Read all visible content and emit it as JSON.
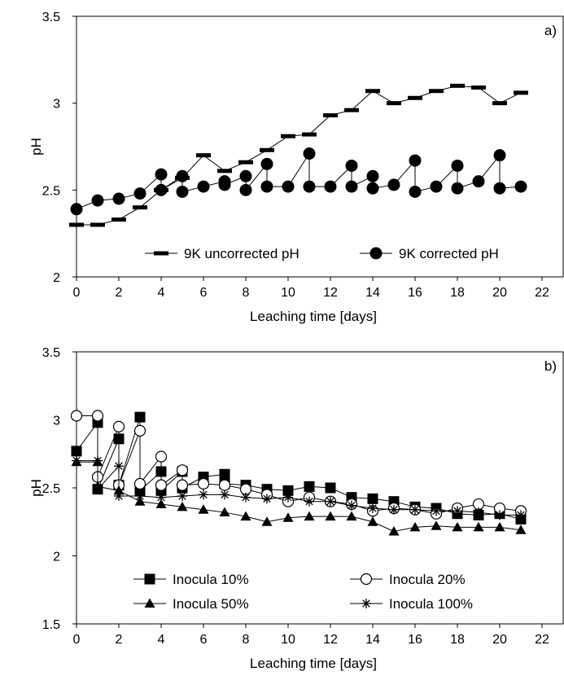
{
  "chart_data": [
    {
      "panel": "a)",
      "type": "line",
      "xlabel": "Leaching time [days]",
      "ylabel": "pH",
      "xlim": [
        0,
        23
      ],
      "ylim": [
        2,
        3.5
      ],
      "xticks": [
        0,
        2,
        4,
        6,
        8,
        10,
        12,
        14,
        16,
        18,
        20,
        22
      ],
      "yticks": [
        2,
        2.5,
        3,
        3.5
      ],
      "ytick_labels": [
        "2",
        "2.5",
        "3",
        "3.5"
      ],
      "grid": false,
      "legend": "bottom",
      "series": [
        {
          "name": "9K uncorrected pH",
          "marker": "dash",
          "color": "#000000",
          "points": [
            [
              0,
              2.3
            ],
            [
              1,
              2.3
            ],
            [
              2,
              2.33
            ],
            [
              3,
              2.4
            ],
            [
              4,
              2.5
            ],
            [
              5,
              2.57
            ],
            [
              6,
              2.7
            ],
            [
              7,
              2.61
            ],
            [
              8,
              2.66
            ],
            [
              9,
              2.73
            ],
            [
              10,
              2.81
            ],
            [
              11,
              2.82
            ],
            [
              12,
              2.93
            ],
            [
              13,
              2.96
            ],
            [
              14,
              3.07
            ],
            [
              15,
              3.0
            ],
            [
              16,
              3.03
            ],
            [
              17,
              3.07
            ],
            [
              18,
              3.1
            ],
            [
              19,
              3.09
            ],
            [
              20,
              3.0
            ],
            [
              21,
              3.06
            ]
          ]
        },
        {
          "name": "9K corrected pH",
          "marker": "filled-circle",
          "color": "#000000",
          "points": [
            [
              0,
              2.39
            ],
            [
              1,
              2.44
            ],
            [
              2,
              2.45
            ],
            [
              3,
              2.48
            ],
            [
              4,
              2.59
            ],
            [
              4,
              2.5
            ],
            [
              5,
              2.58
            ],
            [
              5,
              2.49
            ],
            [
              6,
              2.52
            ],
            [
              7,
              2.55
            ],
            [
              7,
              2.53
            ],
            [
              8,
              2.58
            ],
            [
              8,
              2.5
            ],
            [
              9,
              2.65
            ],
            [
              9,
              2.52
            ],
            [
              10,
              2.52
            ],
            [
              11,
              2.71
            ],
            [
              11,
              2.52
            ],
            [
              12,
              2.52
            ],
            [
              13,
              2.64
            ],
            [
              13,
              2.52
            ],
            [
              14,
              2.58
            ],
            [
              14,
              2.51
            ],
            [
              15,
              2.53
            ],
            [
              16,
              2.67
            ],
            [
              16,
              2.49
            ],
            [
              17,
              2.52
            ],
            [
              18,
              2.64
            ],
            [
              18,
              2.51
            ],
            [
              19,
              2.55
            ],
            [
              20,
              2.7
            ],
            [
              20,
              2.51
            ],
            [
              21,
              2.52
            ]
          ]
        }
      ]
    },
    {
      "panel": "b)",
      "type": "line",
      "xlabel": "Leaching time [days]",
      "ylabel": "pH",
      "xlim": [
        0,
        23
      ],
      "ylim": [
        1.5,
        3.5
      ],
      "xticks": [
        0,
        2,
        4,
        6,
        8,
        10,
        12,
        14,
        16,
        18,
        20,
        22
      ],
      "yticks": [
        1.5,
        2,
        2.5,
        3,
        3.5
      ],
      "ytick_labels": [
        "1.5",
        "2",
        "2.5",
        "3",
        "3.5"
      ],
      "grid": false,
      "legend": "bottom",
      "series": [
        {
          "name": "Inocula 10%",
          "marker": "filled-square",
          "color": "#000000",
          "points": [
            [
              0,
              2.77
            ],
            [
              1,
              2.98
            ],
            [
              1,
              2.49
            ],
            [
              2,
              2.86
            ],
            [
              2,
              2.52
            ],
            [
              3,
              3.02
            ],
            [
              3,
              2.48
            ],
            [
              4,
              2.62
            ],
            [
              4,
              2.48
            ],
            [
              5,
              2.62
            ],
            [
              5,
              2.5
            ],
            [
              6,
              2.58
            ],
            [
              7,
              2.6
            ],
            [
              7,
              2.53
            ],
            [
              8,
              2.52
            ],
            [
              9,
              2.49
            ],
            [
              10,
              2.48
            ],
            [
              11,
              2.51
            ],
            [
              12,
              2.5
            ],
            [
              13,
              2.43
            ],
            [
              14,
              2.42
            ],
            [
              15,
              2.4
            ],
            [
              16,
              2.36
            ],
            [
              17,
              2.35
            ],
            [
              18,
              2.31
            ],
            [
              19,
              2.3
            ],
            [
              20,
              2.31
            ],
            [
              21,
              2.27
            ]
          ]
        },
        {
          "name": "Inocula 20%",
          "marker": "open-circle",
          "color": "#000000",
          "points": [
            [
              0,
              3.03
            ],
            [
              1,
              3.03
            ],
            [
              1,
              2.58
            ],
            [
              2,
              2.95
            ],
            [
              2,
              2.52
            ],
            [
              3,
              2.92
            ],
            [
              3,
              2.53
            ],
            [
              4,
              2.73
            ],
            [
              4,
              2.52
            ],
            [
              5,
              2.63
            ],
            [
              5,
              2.52
            ],
            [
              6,
              2.53
            ],
            [
              7,
              2.52
            ],
            [
              8,
              2.49
            ],
            [
              9,
              2.45
            ],
            [
              10,
              2.4
            ],
            [
              11,
              2.43
            ],
            [
              12,
              2.4
            ],
            [
              13,
              2.38
            ],
            [
              14,
              2.33
            ],
            [
              15,
              2.35
            ],
            [
              16,
              2.34
            ],
            [
              17,
              2.31
            ],
            [
              18,
              2.35
            ],
            [
              19,
              2.38
            ],
            [
              20,
              2.35
            ],
            [
              21,
              2.33
            ]
          ]
        },
        {
          "name": "Inocula 50%",
          "marker": "filled-triangle",
          "color": "#000000",
          "points": [
            [
              0,
              2.69
            ],
            [
              1,
              2.69
            ],
            [
              1,
              2.51
            ],
            [
              2,
              2.48
            ],
            [
              3,
              2.4
            ],
            [
              4,
              2.38
            ],
            [
              5,
              2.36
            ],
            [
              6,
              2.34
            ],
            [
              7,
              2.32
            ],
            [
              8,
              2.29
            ],
            [
              9,
              2.25
            ],
            [
              10,
              2.28
            ],
            [
              11,
              2.29
            ],
            [
              12,
              2.29
            ],
            [
              13,
              2.29
            ],
            [
              14,
              2.25
            ],
            [
              15,
              2.18
            ],
            [
              16,
              2.21
            ],
            [
              17,
              2.22
            ],
            [
              18,
              2.21
            ],
            [
              19,
              2.21
            ],
            [
              20,
              2.21
            ],
            [
              21,
              2.19
            ]
          ]
        },
        {
          "name": "Inocula 100%",
          "marker": "asterisk",
          "color": "#000000",
          "points": [
            [
              0,
              2.7
            ],
            [
              1,
              2.7
            ],
            [
              1,
              2.49
            ],
            [
              2,
              2.66
            ],
            [
              2,
              2.44
            ],
            [
              3,
              2.44
            ],
            [
              4,
              2.43
            ],
            [
              5,
              2.44
            ],
            [
              6,
              2.45
            ],
            [
              7,
              2.45
            ],
            [
              8,
              2.43
            ],
            [
              9,
              2.42
            ],
            [
              10,
              2.43
            ],
            [
              11,
              2.4
            ],
            [
              12,
              2.4
            ],
            [
              13,
              2.37
            ],
            [
              14,
              2.35
            ],
            [
              15,
              2.34
            ],
            [
              16,
              2.34
            ],
            [
              17,
              2.33
            ],
            [
              18,
              2.33
            ],
            [
              19,
              2.32
            ],
            [
              20,
              2.3
            ],
            [
              21,
              2.3
            ]
          ]
        }
      ]
    }
  ]
}
